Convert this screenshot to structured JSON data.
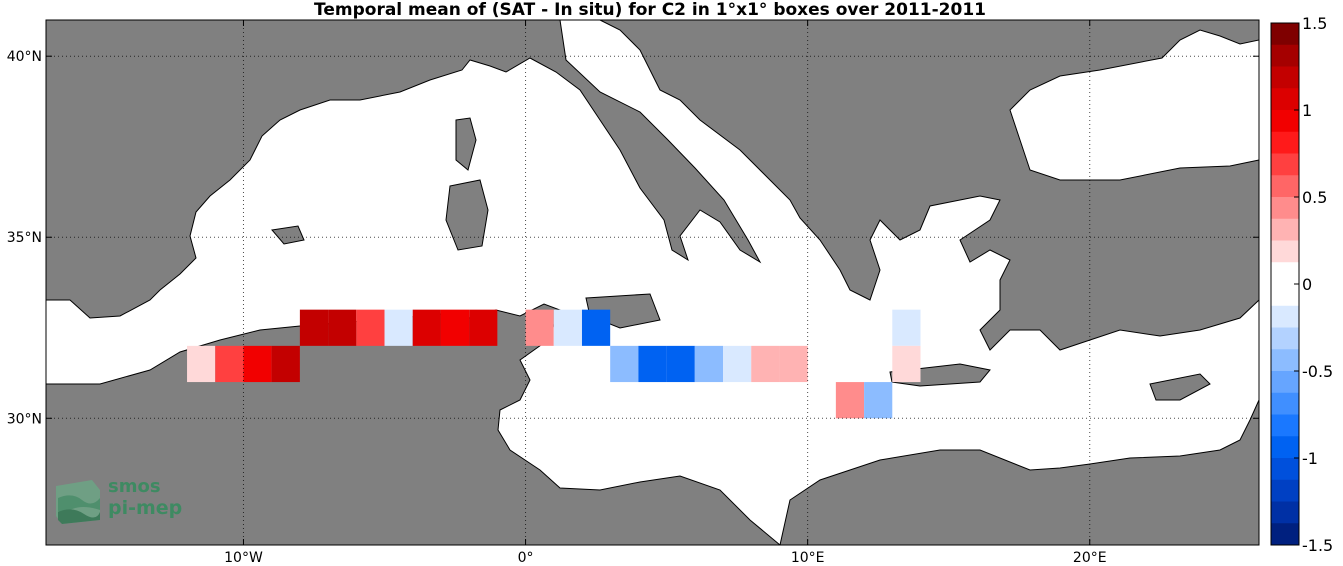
{
  "title": "Temporal mean of (SAT - In situ) for C2 in 1°x1° boxes over 2011-2011",
  "map": {
    "x_ticks": [
      {
        "lon": -10,
        "label": "10°W"
      },
      {
        "lon": 0,
        "label": "0°"
      },
      {
        "lon": 10,
        "label": "10°E"
      },
      {
        "lon": 20,
        "label": "20°E"
      }
    ],
    "y_ticks": [
      {
        "lat": 40,
        "label": "40°N"
      },
      {
        "lat": 35,
        "label": "35°N"
      },
      {
        "lat": 30,
        "label": "30°N"
      }
    ],
    "extent": {
      "lon_min": -17,
      "lon_max": 26,
      "lat_min": 26.5,
      "lat_max": 41
    },
    "land_color": "#808080",
    "sea_color": "#ffffff",
    "grid": true
  },
  "colorbar": {
    "range": [
      -1.5,
      1.5
    ],
    "ticks": [
      "1.5",
      "1",
      "0.5",
      "0",
      "-0.5",
      "-1",
      "-1.5"
    ],
    "colors": [
      "#7f0000",
      "#a50000",
      "#c30000",
      "#dc0000",
      "#f20000",
      "#ff1a1a",
      "#ff4040",
      "#ff6666",
      "#ff8c8c",
      "#ffb3b3",
      "#ffd9d9",
      "#ffffff",
      "#ffffff",
      "#d9e9ff",
      "#b3d2ff",
      "#8cbcff",
      "#66a5ff",
      "#408fff",
      "#1a78ff",
      "#0062f2",
      "#0050dc",
      "#0040c3",
      "#0030a5",
      "#00207f"
    ]
  },
  "logo": {
    "line1": "smos",
    "line2": "pi-mep"
  },
  "boxes": [
    {
      "lon": -12,
      "lat": 31.5,
      "value": 0.15
    },
    {
      "lon": -11,
      "lat": 31.5,
      "value": 0.75
    },
    {
      "lon": -10,
      "lat": 31.5,
      "value": 0.95
    },
    {
      "lon": -9,
      "lat": 31.5,
      "value": 1.15
    },
    {
      "lon": -8,
      "lat": 32.5,
      "value": 1.2
    },
    {
      "lon": -7,
      "lat": 32.5,
      "value": 1.2
    },
    {
      "lon": -6,
      "lat": 32.5,
      "value": 0.65
    },
    {
      "lon": -5,
      "lat": 32.5,
      "value": -0.15
    },
    {
      "lon": -4,
      "lat": 32.5,
      "value": 1.05
    },
    {
      "lon": -3,
      "lat": 32.5,
      "value": 0.95
    },
    {
      "lon": -2,
      "lat": 32.5,
      "value": 1.1
    },
    {
      "lon": 0,
      "lat": 32.5,
      "value": 0.45
    },
    {
      "lon": 1,
      "lat": 32.5,
      "value": -0.15
    },
    {
      "lon": 2,
      "lat": 32.5,
      "value": -0.95
    },
    {
      "lon": 3,
      "lat": 31.5,
      "value": -0.45
    },
    {
      "lon": 4,
      "lat": 31.5,
      "value": -0.95
    },
    {
      "lon": 5,
      "lat": 31.5,
      "value": -0.95
    },
    {
      "lon": 6,
      "lat": 31.5,
      "value": -0.45
    },
    {
      "lon": 7,
      "lat": 31.5,
      "value": -0.15
    },
    {
      "lon": 8,
      "lat": 31.5,
      "value": 0.35
    },
    {
      "lon": 9,
      "lat": 31.5,
      "value": 0.35
    },
    {
      "lon": 11,
      "lat": 30.5,
      "value": 0.45
    },
    {
      "lon": 12,
      "lat": 30.5,
      "value": -0.45
    },
    {
      "lon": 13,
      "lat": 32.5,
      "value": -0.15
    },
    {
      "lon": 13,
      "lat": 31.5,
      "value": 0.15
    }
  ]
}
